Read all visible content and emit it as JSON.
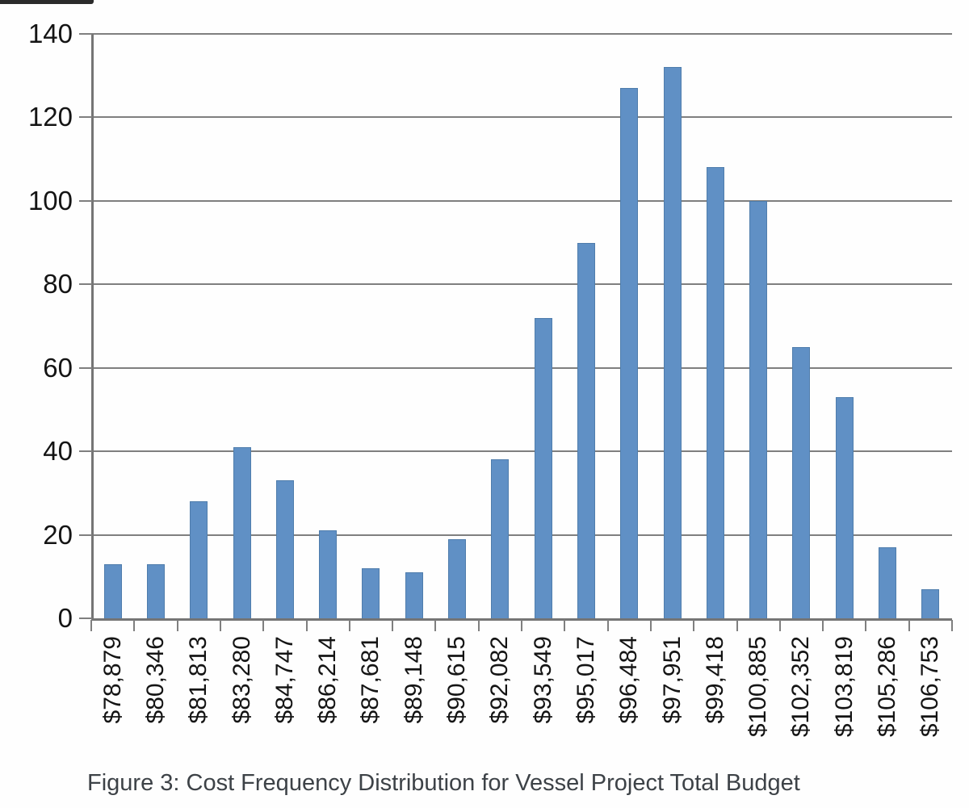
{
  "figure": {
    "caption": "Figure 3: Cost Frequency Distribution for Vessel Project Total Budget"
  },
  "chart_data": {
    "type": "bar",
    "title": "",
    "xlabel": "",
    "ylabel": "",
    "categories": [
      "$78,879",
      "$80,346",
      "$81,813",
      "$83,280",
      "$84,747",
      "$86,214",
      "$87,681",
      "$89,148",
      "$90,615",
      "$92,082",
      "$93,549",
      "$95,017",
      "$96,484",
      "$97,951",
      "$99,418",
      "$100,885",
      "$102,352",
      "$103,819",
      "$105,286",
      "$106,753"
    ],
    "values": [
      13,
      13,
      28,
      41,
      33,
      21,
      12,
      11,
      19,
      38,
      72,
      90,
      127,
      132,
      108,
      100,
      65,
      53,
      17,
      7
    ],
    "ylim": [
      0,
      140
    ],
    "yticks": [
      0,
      20,
      40,
      60,
      80,
      100,
      120,
      140
    ],
    "grid": "horizontal",
    "legend": "none",
    "x_label_rotation_deg": 90,
    "colors": {
      "bar_fill": "#6090c5",
      "bar_border": "#4f7dac",
      "gridline": "#7f7f7f",
      "axis": "#757575",
      "tick": "#7f7f7f",
      "axis_text": "#141414",
      "caption_text": "#3d4247"
    }
  }
}
